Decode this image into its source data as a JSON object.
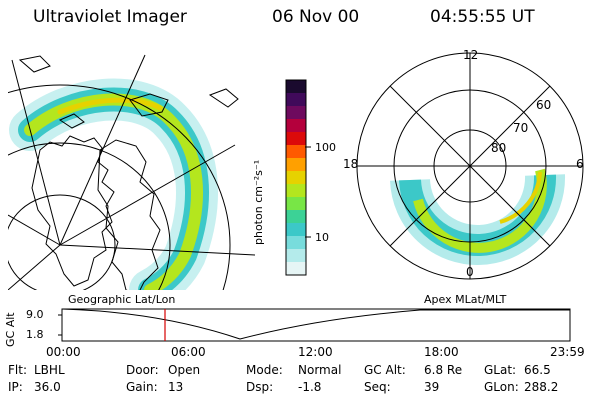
{
  "header": {
    "instrument": "Ultraviolet Imager",
    "date": "06 Nov 00",
    "time": "04:55:55 UT"
  },
  "colorbar": {
    "unit_label": "photon cm⁻²s⁻¹",
    "ticks": [
      "100",
      "10"
    ],
    "colors_top_to_bottom": [
      "#1a0a2e",
      "#400a5a",
      "#6e0a5e",
      "#b4003c",
      "#dc0a0a",
      "#ff5a00",
      "#ffa000",
      "#e6d200",
      "#b4e61e",
      "#78e646",
      "#3cd296",
      "#3cc8c8",
      "#78dcdc",
      "#b4ebeb",
      "#e6f5f5"
    ]
  },
  "left_panel": {
    "label": "Geographic Lat/Lon"
  },
  "right_panel": {
    "label": "Apex MLat/MLT",
    "mlt_labels": {
      "top": "12",
      "left": "18",
      "right": "6",
      "bottom": "0"
    },
    "lat_labels": [
      "60",
      "70",
      "80"
    ]
  },
  "altitude_plot": {
    "ylabel": "GC Alt",
    "yticks": [
      "9.0",
      "1.8"
    ],
    "xticks": [
      "00:00",
      "06:00",
      "12:00",
      "18:00",
      "23:59"
    ],
    "marker_time": "04:55:55"
  },
  "status": {
    "row1": [
      {
        "key": "Flt:",
        "val": "LBHL"
      },
      {
        "key": "Door:",
        "val": "Open"
      },
      {
        "key": "Mode:",
        "val": "Normal"
      },
      {
        "key": "GC Alt:",
        "val": "6.8 Re"
      },
      {
        "key": "GLat:",
        "val": "66.5"
      }
    ],
    "row2": [
      {
        "key": "IP:",
        "val": "36.0"
      },
      {
        "key": "Gain:",
        "val": "13"
      },
      {
        "key": "Dsp:",
        "val": "-1.8"
      },
      {
        "key": "Seq:",
        "val": "39"
      },
      {
        "key": "GLon:",
        "val": "288.2"
      }
    ]
  }
}
